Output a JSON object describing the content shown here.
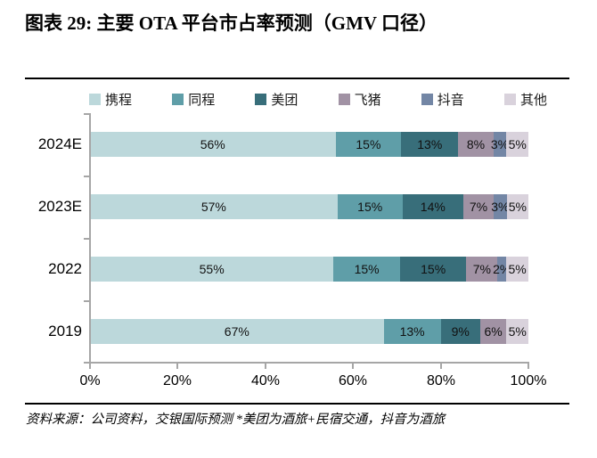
{
  "title": "图表 29: 主要 OTA 平台市占率预测（GMV 口径）",
  "legend": {
    "items": [
      {
        "label": "携程",
        "color": "#BCD8DB"
      },
      {
        "label": "同程",
        "color": "#5F9EA8"
      },
      {
        "label": "美团",
        "color": "#386E7A"
      },
      {
        "label": "飞猪",
        "color": "#A192A4"
      },
      {
        "label": "抖音",
        "color": "#7386A5"
      },
      {
        "label": "其他",
        "color": "#D9D2DC"
      }
    ]
  },
  "chart_data": {
    "type": "bar",
    "orientation": "horizontal",
    "stacked": true,
    "title": "主要 OTA 平台市占率预测（GMV 口径）",
    "categories": [
      "2024E",
      "2023E",
      "2022",
      "2019"
    ],
    "series": [
      {
        "name": "携程",
        "color": "#BCD8DB",
        "values": [
          56,
          57,
          55,
          67
        ]
      },
      {
        "name": "同程",
        "color": "#5F9EA8",
        "values": [
          15,
          15,
          15,
          13
        ]
      },
      {
        "name": "美团",
        "color": "#386E7A",
        "values": [
          13,
          14,
          15,
          9
        ]
      },
      {
        "name": "飞猪",
        "color": "#A192A4",
        "values": [
          8,
          7,
          7,
          6
        ]
      },
      {
        "name": "抖音",
        "color": "#7386A5",
        "values": [
          3,
          3,
          2,
          0
        ]
      },
      {
        "name": "其他",
        "color": "#D9D2DC",
        "values": [
          5,
          5,
          5,
          5
        ]
      }
    ],
    "xlim": [
      0,
      100
    ],
    "x_tick_labels": [
      "0%",
      "20%",
      "40%",
      "60%",
      "80%",
      "100%"
    ],
    "legend_position": "top",
    "grid": false,
    "source": "资料来源：公司资料，交银国际预测  *美团为酒旅+民宿交通，抖音为酒旅"
  },
  "rows": [
    {
      "category": "2024E",
      "segments": [
        {
          "series": "携程",
          "label": "56%",
          "value": 56
        },
        {
          "series": "同程",
          "label": "15%",
          "value": 15
        },
        {
          "series": "美团",
          "label": "13%",
          "value": 13
        },
        {
          "series": "飞猪",
          "label": "8%",
          "value": 8
        },
        {
          "series": "抖音",
          "label": "3%",
          "value": 3
        },
        {
          "series": "其他",
          "label": "5%",
          "value": 5
        }
      ]
    },
    {
      "category": "2023E",
      "segments": [
        {
          "series": "携程",
          "label": "57%",
          "value": 57
        },
        {
          "series": "同程",
          "label": "15%",
          "value": 15
        },
        {
          "series": "美团",
          "label": "14%",
          "value": 14
        },
        {
          "series": "飞猪",
          "label": "7%",
          "value": 7
        },
        {
          "series": "抖音",
          "label": "3%",
          "value": 3
        },
        {
          "series": "其他",
          "label": "5%",
          "value": 5
        }
      ]
    },
    {
      "category": "2022",
      "segments": [
        {
          "series": "携程",
          "label": "55%",
          "value": 55
        },
        {
          "series": "同程",
          "label": "15%",
          "value": 15
        },
        {
          "series": "美团",
          "label": "15%",
          "value": 15
        },
        {
          "series": "飞猪",
          "label": "7%",
          "value": 7
        },
        {
          "series": "抖音",
          "label": "2%",
          "value": 2
        },
        {
          "series": "其他",
          "label": "5%",
          "value": 5
        }
      ]
    },
    {
      "category": "2019",
      "segments": [
        {
          "series": "携程",
          "label": "67%",
          "value": 67
        },
        {
          "series": "同程",
          "label": "13%",
          "value": 13
        },
        {
          "series": "美团",
          "label": "9%",
          "value": 9
        },
        {
          "series": "飞猪",
          "label": "6%",
          "value": 6
        },
        {
          "series": "其他",
          "label": "5%",
          "value": 5
        }
      ]
    }
  ],
  "x_axis": {
    "ticks": [
      "0%",
      "20%",
      "40%",
      "60%",
      "80%",
      "100%"
    ]
  },
  "footer": {
    "source": "资料来源：公司资料，交银国际预测  *美团为酒旅+民宿交通，抖音为酒旅"
  }
}
